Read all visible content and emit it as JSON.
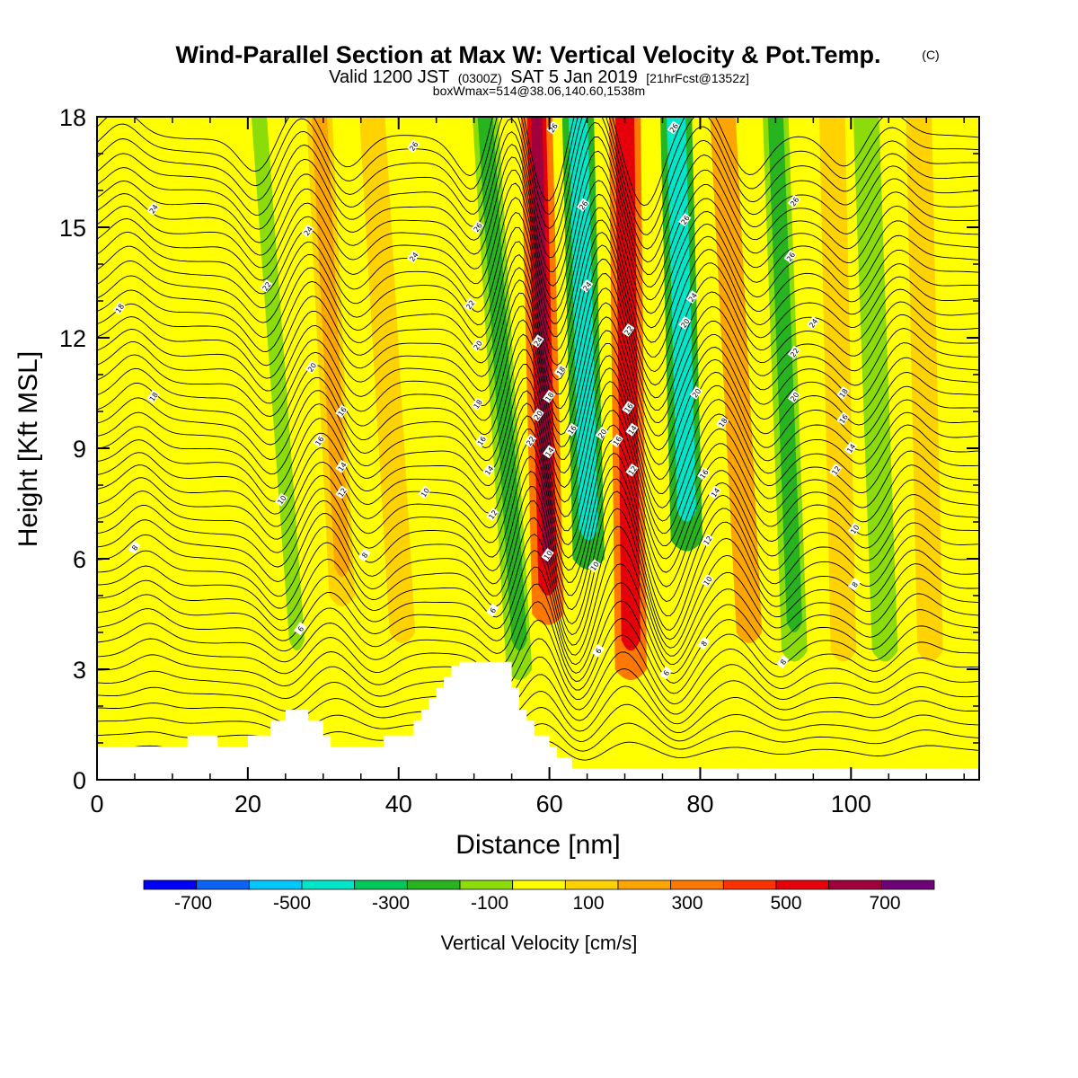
{
  "chart_data": {
    "type": "heatmap",
    "title": "Wind-Parallel Section at Max W: Vertical Velocity & Pot.Temp.",
    "title_mark": "(C)",
    "subtitle": {
      "a": "Valid 1200 JST",
      "b": "(0300Z)",
      "c": "SAT 5 Jan 2019",
      "d": "[21hrFcst@1352z]"
    },
    "info": "boxWmax=514@38.06,140.60,1538m",
    "xlabel": "Distance [nm]",
    "ylabel": "Height [Kft MSL]",
    "xlim": [
      0,
      117
    ],
    "ylim": [
      0,
      18
    ],
    "xticks": [
      0,
      20,
      40,
      60,
      80,
      100
    ],
    "yticks": [
      0,
      3,
      6,
      9,
      12,
      15,
      18
    ],
    "colorbar": {
      "title": "Vertical Velocity [cm/s]",
      "levels": [
        -800,
        -700,
        -600,
        -500,
        -400,
        -300,
        -200,
        -100,
        0,
        100,
        200,
        300,
        400,
        500,
        600,
        700,
        800
      ],
      "labels": [
        -700,
        -500,
        -300,
        -100,
        100,
        300,
        500,
        700
      ],
      "colors": [
        "#0000f5",
        "#0a64f5",
        "#00c8ff",
        "#00e6c8",
        "#00c85a",
        "#28b41e",
        "#8cdc0a",
        "#ffff00",
        "#ffd200",
        "#ffa500",
        "#ff7800",
        "#ff3200",
        "#e6000a",
        "#a0003c",
        "#6e0078"
      ]
    },
    "w_field": {
      "base": "#ffff00",
      "bands": [
        {
          "x_bottom": 8.3,
          "x_top": 8.3,
          "y_bottom": 9.0,
          "y_top": 17.0,
          "value": -100
        },
        {
          "x_bottom": 21.0,
          "x_top": 21.0,
          "y_bottom": 9.0,
          "y_top": 18.0,
          "value": -100
        },
        {
          "x_bottom": 26.5,
          "x_top": 21.5,
          "y_bottom": 3.0,
          "y_top": 18.0,
          "value": -200
        },
        {
          "x_bottom": 32.5,
          "x_top": 29.5,
          "y_bottom": 5.0,
          "y_top": 18.0,
          "value": 200
        },
        {
          "x_bottom": 40.5,
          "x_top": 36.5,
          "y_bottom": 4.0,
          "y_top": 18.0,
          "value": 150
        },
        {
          "x_bottom": 56.0,
          "x_top": 51.5,
          "y_bottom": 3.0,
          "y_top": 18.0,
          "value": -350
        },
        {
          "x_bottom": 59.8,
          "x_top": 58.3,
          "y_bottom": 4.5,
          "y_top": 18.0,
          "value": 650
        },
        {
          "x_bottom": 65.2,
          "x_top": 63.8,
          "y_bottom": 6.0,
          "y_top": 18.0,
          "value": -550
        },
        {
          "x_bottom": 70.8,
          "x_top": 70.0,
          "y_bottom": 3.0,
          "y_top": 18.0,
          "value": 550
        },
        {
          "x_bottom": 78.2,
          "x_top": 76.8,
          "y_bottom": 6.5,
          "y_top": 18.0,
          "value": -550
        },
        {
          "x_bottom": 86.5,
          "x_top": 83.0,
          "y_bottom": 4.0,
          "y_top": 18.0,
          "value": 250
        },
        {
          "x_bottom": 92.5,
          "x_top": 90.0,
          "y_bottom": 3.5,
          "y_top": 18.0,
          "value": -300
        },
        {
          "x_bottom": 99.0,
          "x_top": 97.5,
          "y_bottom": 3.5,
          "y_top": 18.0,
          "value": 150
        },
        {
          "x_bottom": 104.5,
          "x_top": 102.0,
          "y_bottom": 3.5,
          "y_top": 18.0,
          "value": -250
        },
        {
          "x_bottom": 110.5,
          "x_top": 109.0,
          "y_bottom": 3.5,
          "y_top": 18.0,
          "value": 150
        },
        {
          "x_bottom": 115.5,
          "x_top": 115.5,
          "y_bottom": 0.5,
          "y_top": 18.0,
          "value": -150
        }
      ]
    },
    "terrain_kft": [
      [
        0,
        0
      ],
      [
        0,
        0.9
      ],
      [
        12,
        0.9
      ],
      [
        12,
        1.2
      ],
      [
        16,
        1.2
      ],
      [
        16,
        0.9
      ],
      [
        20,
        0.9
      ],
      [
        20,
        1.2
      ],
      [
        23,
        1.2
      ],
      [
        23,
        1.6
      ],
      [
        25,
        1.6
      ],
      [
        25,
        1.9
      ],
      [
        28,
        1.9
      ],
      [
        28,
        1.6
      ],
      [
        30,
        1.6
      ],
      [
        30,
        1.2
      ],
      [
        31,
        1.2
      ],
      [
        31,
        0.9
      ],
      [
        38,
        0.9
      ],
      [
        38,
        1.2
      ],
      [
        42,
        1.2
      ],
      [
        42,
        1.6
      ],
      [
        43,
        1.6
      ],
      [
        43,
        1.9
      ],
      [
        44,
        1.9
      ],
      [
        44,
        2.2
      ],
      [
        45,
        2.2
      ],
      [
        45,
        2.5
      ],
      [
        46,
        2.5
      ],
      [
        46,
        2.8
      ],
      [
        47,
        2.8
      ],
      [
        47,
        3.1
      ],
      [
        48,
        3.1
      ],
      [
        48,
        3.2
      ],
      [
        55,
        3.2
      ],
      [
        55,
        2.5
      ],
      [
        56,
        2.5
      ],
      [
        56,
        1.9
      ],
      [
        57,
        1.9
      ],
      [
        57,
        1.6
      ],
      [
        58,
        1.6
      ],
      [
        58,
        1.2
      ],
      [
        60,
        1.2
      ],
      [
        60,
        0.9
      ],
      [
        61,
        0.9
      ],
      [
        61,
        0.6
      ],
      [
        63,
        0.6
      ],
      [
        63,
        0.3
      ],
      [
        117,
        0.3
      ],
      [
        117,
        0
      ]
    ],
    "theta_contours": {
      "count": 46,
      "y_start": 0.8,
      "y_step": 0.37,
      "waves": [
        {
          "x": 8,
          "amp": 0.7
        },
        {
          "x": 26,
          "amp": -1.0
        },
        {
          "x": 32,
          "amp": 0.9
        },
        {
          "x": 38,
          "amp": -0.8
        },
        {
          "x": 55,
          "amp": -1.2
        },
        {
          "x": 59.5,
          "amp": 2.0
        },
        {
          "x": 64.5,
          "amp": -2.0
        },
        {
          "x": 70.5,
          "amp": 1.9
        },
        {
          "x": 77.5,
          "amp": -1.9
        },
        {
          "x": 85,
          "amp": 1.0
        },
        {
          "x": 91.5,
          "amp": -1.0
        },
        {
          "x": 104,
          "amp": -0.8
        },
        {
          "x": 110,
          "amp": 0.7
        }
      ],
      "labels": [
        {
          "text": "26",
          "x": 42,
          "y": 17.2
        },
        {
          "text": "24",
          "x": 7.5,
          "y": 15.5
        },
        {
          "text": "24",
          "x": 28,
          "y": 14.9
        },
        {
          "text": "24",
          "x": 42,
          "y": 14.2
        },
        {
          "text": "22",
          "x": 22.5,
          "y": 13.4
        },
        {
          "text": "18",
          "x": 3,
          "y": 12.8
        },
        {
          "text": "20",
          "x": 28.5,
          "y": 11.2
        },
        {
          "text": "18",
          "x": 7.5,
          "y": 10.4
        },
        {
          "text": "16",
          "x": 32.5,
          "y": 10.0
        },
        {
          "text": "16",
          "x": 29.5,
          "y": 9.2
        },
        {
          "text": "14",
          "x": 32.5,
          "y": 8.5
        },
        {
          "text": "12",
          "x": 32.5,
          "y": 7.8
        },
        {
          "text": "10",
          "x": 24.5,
          "y": 7.6
        },
        {
          "text": "10",
          "x": 43.5,
          "y": 7.8
        },
        {
          "text": "8",
          "x": 5,
          "y": 6.3
        },
        {
          "text": "8",
          "x": 35.5,
          "y": 6.1
        },
        {
          "text": "6",
          "x": 27,
          "y": 4.1
        },
        {
          "text": "6",
          "x": 52.5,
          "y": 4.6
        },
        {
          "text": "26",
          "x": 50.5,
          "y": 15.0
        },
        {
          "text": "22",
          "x": 49.5,
          "y": 12.9
        },
        {
          "text": "20",
          "x": 50.5,
          "y": 11.8
        },
        {
          "text": "18",
          "x": 50.5,
          "y": 10.2
        },
        {
          "text": "16",
          "x": 51,
          "y": 9.2
        },
        {
          "text": "14",
          "x": 52,
          "y": 8.4
        },
        {
          "text": "12",
          "x": 52.5,
          "y": 7.2
        },
        {
          "text": "26",
          "x": 60.5,
          "y": 17.7
        },
        {
          "text": "26",
          "x": 64.5,
          "y": 15.6
        },
        {
          "text": "24",
          "x": 65,
          "y": 13.4
        },
        {
          "text": "24",
          "x": 58.5,
          "y": 11.9
        },
        {
          "text": "18",
          "x": 61.5,
          "y": 11.1
        },
        {
          "text": "18",
          "x": 60,
          "y": 10.4
        },
        {
          "text": "20",
          "x": 58.5,
          "y": 9.9
        },
        {
          "text": "22",
          "x": 57.5,
          "y": 9.2
        },
        {
          "text": "14",
          "x": 60,
          "y": 8.9
        },
        {
          "text": "16",
          "x": 63,
          "y": 9.5
        },
        {
          "text": "20",
          "x": 67,
          "y": 9.4
        },
        {
          "text": "10",
          "x": 59.8,
          "y": 6.1
        },
        {
          "text": "10",
          "x": 66,
          "y": 5.8
        },
        {
          "text": "6",
          "x": 66.5,
          "y": 3.5
        },
        {
          "text": "26",
          "x": 76.5,
          "y": 17.7
        },
        {
          "text": "26",
          "x": 78,
          "y": 15.2
        },
        {
          "text": "24",
          "x": 79,
          "y": 13.1
        },
        {
          "text": "20",
          "x": 78,
          "y": 12.4
        },
        {
          "text": "22",
          "x": 70.5,
          "y": 12.2
        },
        {
          "text": "20",
          "x": 79.5,
          "y": 10.5
        },
        {
          "text": "16",
          "x": 70.5,
          "y": 10.1
        },
        {
          "text": "14",
          "x": 71,
          "y": 9.5
        },
        {
          "text": "16",
          "x": 69,
          "y": 9.2
        },
        {
          "text": "18",
          "x": 83,
          "y": 9.7
        },
        {
          "text": "12",
          "x": 71,
          "y": 8.4
        },
        {
          "text": "16",
          "x": 80.5,
          "y": 8.3
        },
        {
          "text": "14",
          "x": 82,
          "y": 7.8
        },
        {
          "text": "12",
          "x": 81,
          "y": 6.5
        },
        {
          "text": "10",
          "x": 81,
          "y": 5.4
        },
        {
          "text": "8",
          "x": 80.5,
          "y": 3.7
        },
        {
          "text": "6",
          "x": 75.5,
          "y": 2.9
        },
        {
          "text": "26",
          "x": 92.5,
          "y": 15.7
        },
        {
          "text": "26",
          "x": 92,
          "y": 14.2
        },
        {
          "text": "24",
          "x": 95,
          "y": 12.4
        },
        {
          "text": "22",
          "x": 92.5,
          "y": 11.6
        },
        {
          "text": "20",
          "x": 92.5,
          "y": 10.4
        },
        {
          "text": "18",
          "x": 99,
          "y": 10.5
        },
        {
          "text": "16",
          "x": 99,
          "y": 9.8
        },
        {
          "text": "14",
          "x": 100,
          "y": 9.0
        },
        {
          "text": "12",
          "x": 98,
          "y": 8.4
        },
        {
          "text": "10",
          "x": 100.5,
          "y": 6.8
        },
        {
          "text": "8",
          "x": 100.5,
          "y": 5.3
        },
        {
          "text": "8",
          "x": 91,
          "y": 3.2
        }
      ]
    }
  }
}
